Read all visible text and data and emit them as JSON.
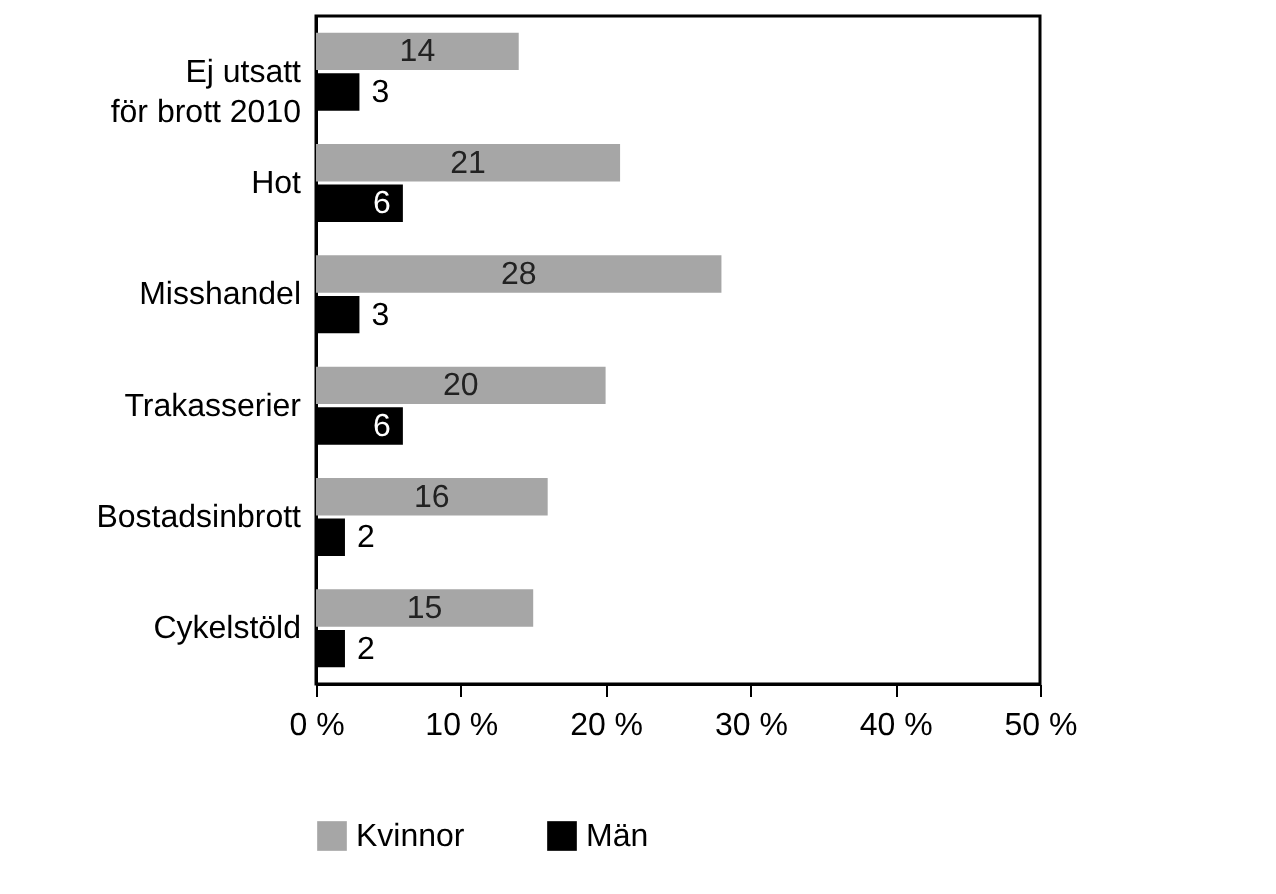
{
  "chart_data": {
    "type": "bar",
    "orientation": "horizontal",
    "categories": [
      "Ej utsatt för brott 2010",
      "Hot",
      "Misshandel",
      "Trakasserier",
      "Bostadsinbrott",
      "Cykelstöld"
    ],
    "series": [
      {
        "name": "Kvinnor",
        "color": "#a6a6a6",
        "values": [
          14,
          21,
          28,
          20,
          16,
          15
        ]
      },
      {
        "name": "Män",
        "color": "#000000",
        "values": [
          3,
          6,
          3,
          6,
          2,
          2
        ]
      }
    ],
    "xlim": [
      0,
      50
    ],
    "xticks": [
      {
        "value": 0,
        "label": "0 %"
      },
      {
        "value": 10,
        "label": "10 %"
      },
      {
        "value": 20,
        "label": "20 %"
      },
      {
        "value": 30,
        "label": "30 %"
      },
      {
        "value": 40,
        "label": "40 %"
      },
      {
        "value": 50,
        "label": "50 %"
      }
    ],
    "data_labels": true,
    "legend": "bottom",
    "grid": false
  }
}
